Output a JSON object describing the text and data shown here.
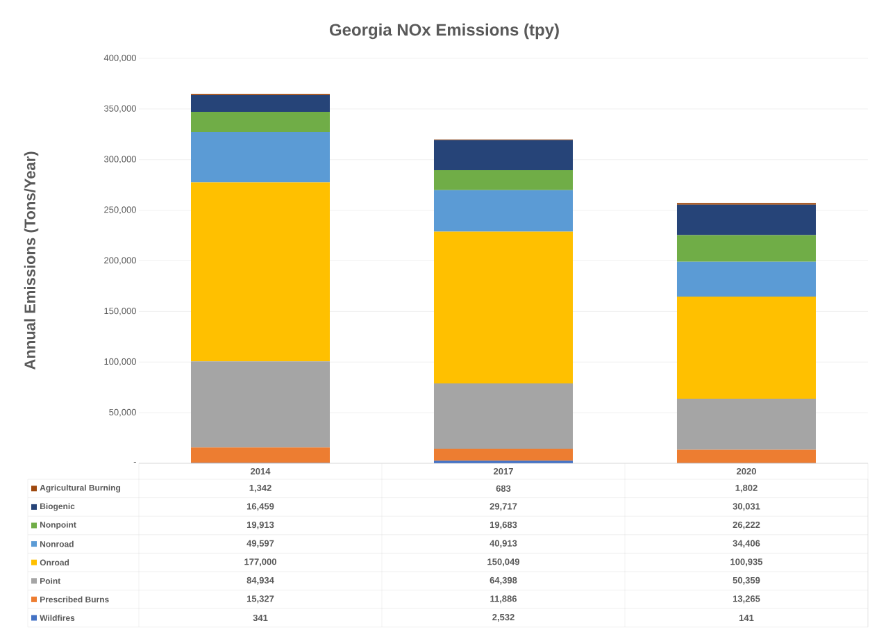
{
  "chart_data": {
    "type": "bar",
    "stacked": true,
    "title": "Georgia NOx Emissions (tpy)",
    "ylabel": "Annual Emissions (Tons/Year)",
    "categories": [
      "2014",
      "2017",
      "2020"
    ],
    "series": [
      {
        "name": "Wildfires",
        "color": "#4472c4",
        "values": [
          341,
          2532,
          141
        ],
        "value_labels": [
          "341",
          "2,532",
          "141"
        ]
      },
      {
        "name": "Prescribed Burns",
        "color": "#ed7d31",
        "values": [
          15327,
          11886,
          13265
        ],
        "value_labels": [
          "15,327",
          "11,886",
          "13,265"
        ]
      },
      {
        "name": "Point",
        "color": "#a5a5a5",
        "values": [
          84934,
          64398,
          50359
        ],
        "value_labels": [
          "84,934",
          "64,398",
          "50,359"
        ]
      },
      {
        "name": "Onroad",
        "color": "#ffc000",
        "values": [
          177000,
          150049,
          100935
        ],
        "value_labels": [
          "177,000",
          "150,049",
          "100,935"
        ]
      },
      {
        "name": "Nonroad",
        "color": "#5b9bd5",
        "values": [
          49597,
          40913,
          34406
        ],
        "value_labels": [
          "49,597",
          "40,913",
          "34,406"
        ]
      },
      {
        "name": "Nonpoint",
        "color": "#70ad47",
        "values": [
          19913,
          19683,
          26222
        ],
        "value_labels": [
          "19,913",
          "19,683",
          "26,222"
        ]
      },
      {
        "name": "Biogenic",
        "color": "#264478",
        "values": [
          16459,
          29717,
          30031
        ],
        "value_labels": [
          "16,459",
          "29,717",
          "30,031"
        ]
      },
      {
        "name": "Agricultural Burning",
        "color": "#9e480e",
        "values": [
          1342,
          683,
          1802
        ],
        "value_labels": [
          "1,342",
          "683",
          "1,802"
        ]
      }
    ],
    "ylim": [
      0,
      400000
    ],
    "yticks": [
      {
        "value": 0,
        "label": "-"
      },
      {
        "value": 50000,
        "label": "50,000"
      },
      {
        "value": 100000,
        "label": "100,000"
      },
      {
        "value": 150000,
        "label": "150,000"
      },
      {
        "value": 200000,
        "label": "200,000"
      },
      {
        "value": 250000,
        "label": "250,000"
      },
      {
        "value": 300000,
        "label": "300,000"
      },
      {
        "value": 350000,
        "label": "350,000"
      },
      {
        "value": 400000,
        "label": "400,000"
      }
    ],
    "grid": "y",
    "legend": "bottom"
  }
}
